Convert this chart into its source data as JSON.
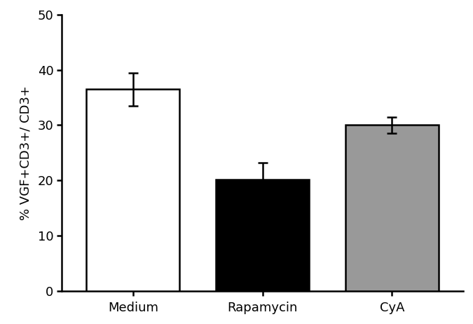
{
  "categories": [
    "Medium",
    "Rapamycin",
    "CyA"
  ],
  "values": [
    36.5,
    20.2,
    30.0
  ],
  "errors": [
    3.0,
    3.0,
    1.5
  ],
  "bar_colors": [
    "#ffffff",
    "#000000",
    "#999999"
  ],
  "bar_edgecolors": [
    "#000000",
    "#000000",
    "#000000"
  ],
  "bar_width": 0.72,
  "ylabel": "% VGF+CD3+/ CD3+",
  "ylim": [
    0,
    50
  ],
  "yticks": [
    0,
    10,
    20,
    30,
    40,
    50
  ],
  "error_capsize": 5,
  "error_linewidth": 1.8,
  "error_color": "#000000",
  "edgewidth": 1.8,
  "ylabel_fontsize": 13,
  "tick_fontsize": 13,
  "background_color": "#ffffff",
  "xlim": [
    -0.55,
    2.55
  ]
}
